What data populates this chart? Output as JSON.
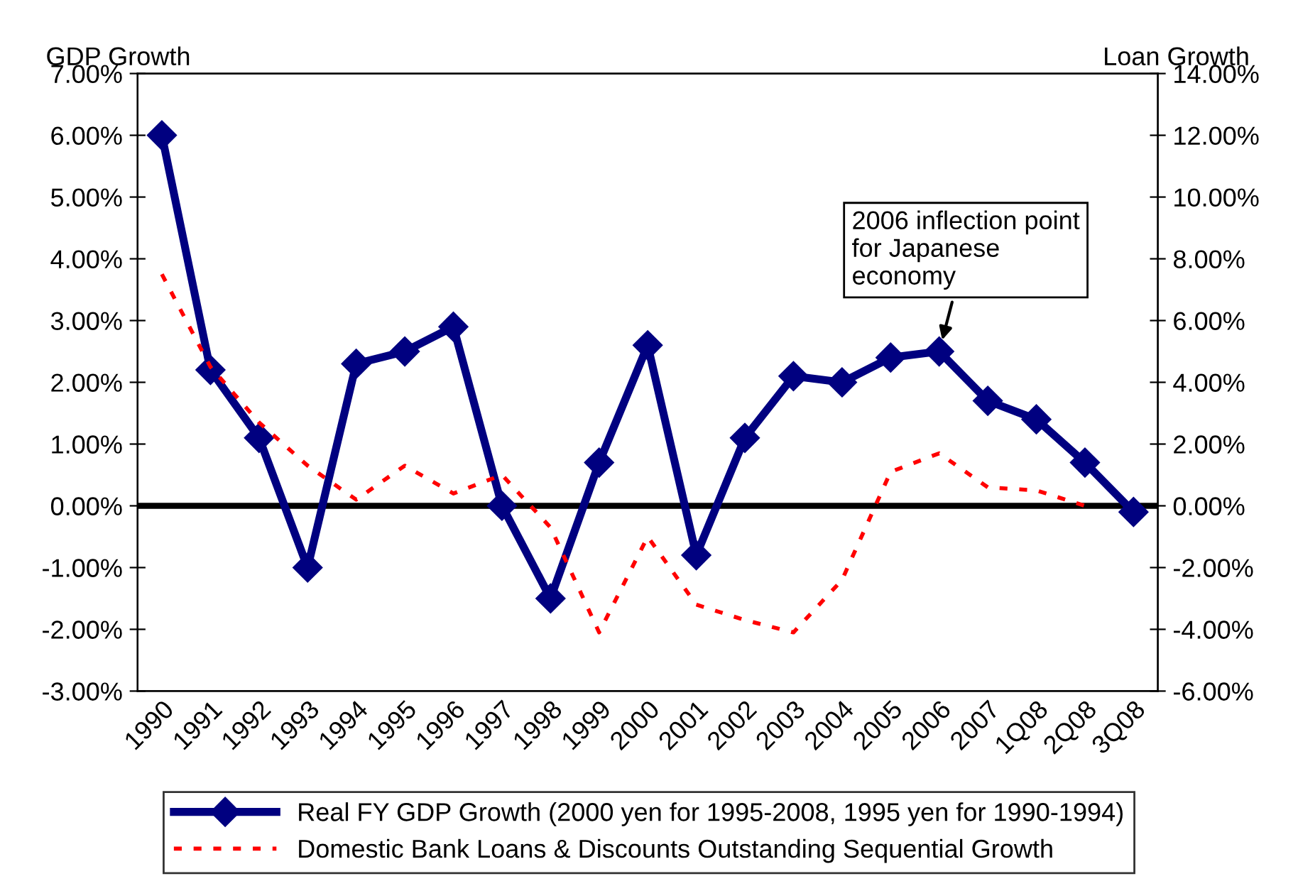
{
  "chart_data": {
    "type": "line",
    "ylabel": "GDP Growth",
    "y2label": "Loan Growth",
    "categories": [
      "1990",
      "1991",
      "1992",
      "1993",
      "1994",
      "1995",
      "1996",
      "1997",
      "1998",
      "1999",
      "2000",
      "2001",
      "2002",
      "2003",
      "2004",
      "2005",
      "2006",
      "2007",
      "1Q08",
      "2Q08",
      "3Q08"
    ],
    "series": [
      {
        "name": "Real FY GDP Growth (2000 yen for 1995-2008, 1995 yen for 1990-1994)",
        "color": "#000080",
        "marker": "diamond",
        "line_style": "solid",
        "values": [
          6.0,
          2.2,
          1.1,
          -1.0,
          2.3,
          2.5,
          2.9,
          0.0,
          -1.5,
          0.7,
          2.6,
          -0.8,
          1.1,
          2.1,
          2.0,
          2.4,
          2.5,
          1.7,
          1.4,
          0.7,
          -0.1
        ]
      },
      {
        "name": "Domestic Bank Loans & Discounts Outstanding Sequential Growth",
        "color": "#ff0000",
        "marker": "none",
        "line_style": "dotted",
        "axis": "y2",
        "values": [
          7.5,
          4.5,
          2.7,
          1.3,
          0.2,
          1.3,
          0.4,
          1.0,
          -0.7,
          -4.1,
          -1.0,
          -3.2,
          -3.7,
          -4.1,
          -2.4,
          1.1,
          1.7,
          0.6,
          0.5,
          0.0,
          null
        ]
      }
    ],
    "ylim": [
      -3,
      7
    ],
    "yticks": [
      {
        "value": -3,
        "label": "-3.00%"
      },
      {
        "value": -2,
        "label": "-2.00%"
      },
      {
        "value": -1,
        "label": "-1.00%"
      },
      {
        "value": 0,
        "label": "0.00%"
      },
      {
        "value": 1,
        "label": "1.00%"
      },
      {
        "value": 2,
        "label": "2.00%"
      },
      {
        "value": 3,
        "label": "3.00%"
      },
      {
        "value": 4,
        "label": "4.00%"
      },
      {
        "value": 5,
        "label": "5.00%"
      },
      {
        "value": 6,
        "label": "6.00%"
      },
      {
        "value": 7,
        "label": "7.00%"
      }
    ],
    "y2lim": [
      -6,
      14
    ],
    "y2ticks": [
      {
        "value": -6,
        "label": "-6.00%"
      },
      {
        "value": -4,
        "label": "-4.00%"
      },
      {
        "value": -2,
        "label": "-2.00%"
      },
      {
        "value": 0,
        "label": "0.00%"
      },
      {
        "value": 2,
        "label": "2.00%"
      },
      {
        "value": 4,
        "label": "4.00%"
      },
      {
        "value": 6,
        "label": "6.00%"
      },
      {
        "value": 8,
        "label": "8.00%"
      },
      {
        "value": 10,
        "label": "10.00%"
      },
      {
        "value": 12,
        "label": "12.00%"
      },
      {
        "value": 14,
        "label": "14.00%"
      }
    ],
    "ref_lines": [
      {
        "axis": "y",
        "value": 0,
        "color": "#000000"
      }
    ],
    "annotations": [
      {
        "text": "2006 inflection point\nfor Japanese\neconomy",
        "x": "2006",
        "y": 2.5
      }
    ],
    "legend": "bottom",
    "grid": false
  }
}
